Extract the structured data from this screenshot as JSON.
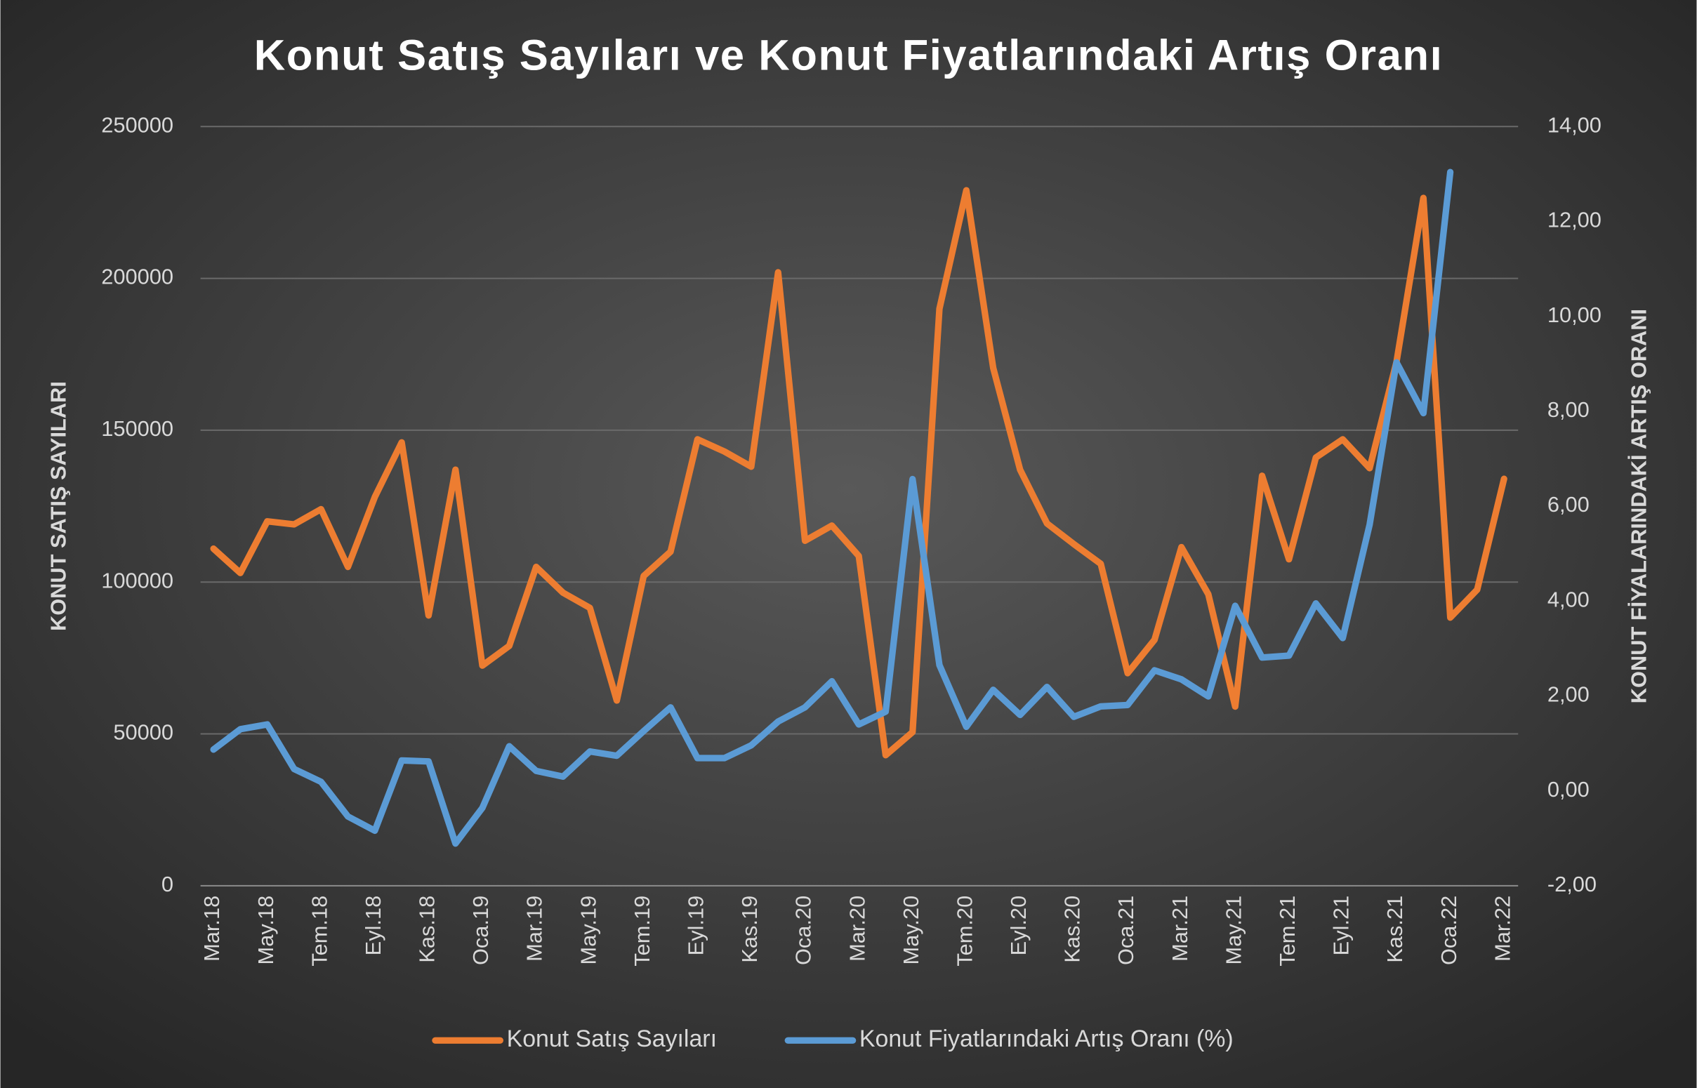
{
  "chart_data": {
    "type": "line",
    "title": "Konut Satış Sayıları ve Konut Fiyatlarındaki Artış Oranı",
    "ylabel": "KONUT SATIŞ SAYILARI",
    "y2label": "KONUT FİYALARINDAKİ ARTIŞ ORANI",
    "categories": [
      "Mar.18",
      null,
      "May.18",
      null,
      "Tem.18",
      null,
      "Eyl.18",
      null,
      "Kas.18",
      null,
      "Oca.19",
      null,
      "Mar.19",
      null,
      "May.19",
      null,
      "Tem.19",
      null,
      "Eyl.19",
      null,
      "Kas.19",
      null,
      "Oca.20",
      null,
      "Mar.20",
      null,
      "May.20",
      null,
      "Tem.20",
      null,
      "Eyl.20",
      null,
      "Kas.20",
      null,
      "Oca.21",
      null,
      "Mar.21",
      null,
      "May.21",
      null,
      "Tem.21",
      null,
      "Eyl.21",
      null,
      "Kas.21",
      null,
      "Oca.22",
      null,
      "Mar.22"
    ],
    "series": [
      {
        "name": "Konut Satış Sayıları",
        "color": "#ed7d31",
        "axis": "y",
        "values": [
          111000,
          103000,
          120000,
          119000,
          124000,
          105000,
          128000,
          146000,
          89000,
          137000,
          72500,
          79000,
          105000,
          96500,
          91500,
          61000,
          102000,
          110000,
          147000,
          143000,
          138000,
          202000,
          113600,
          118600,
          108600,
          43000,
          50600,
          190000,
          229000,
          170500,
          137000,
          119300,
          112500,
          106000,
          70000,
          81000,
          111500,
          96000,
          59000,
          135000,
          107500,
          141000,
          147000,
          137500,
          172500,
          226500,
          88300,
          97500,
          134000
        ]
      },
      {
        "name": "Konut Fiyatlarındaki Artış Oranı (%)",
        "color": "#5b9bd5",
        "axis": "y2",
        "values": [
          0.87,
          1.3,
          1.4,
          0.46,
          0.19,
          -0.54,
          -0.84,
          0.64,
          0.62,
          -1.11,
          -0.36,
          0.94,
          0.42,
          0.3,
          0.83,
          0.74,
          1.26,
          1.76,
          0.69,
          0.69,
          0.96,
          1.46,
          1.76,
          2.31,
          1.4,
          1.67,
          6.57,
          2.65,
          1.35,
          2.13,
          1.6,
          2.19,
          1.56,
          1.78,
          1.81,
          2.54,
          2.35,
          1.99,
          3.9,
          2.81,
          2.85,
          3.95,
          3.22,
          5.61,
          9.03,
          7.96,
          13.04,
          null,
          null
        ]
      }
    ],
    "ylim": [
      0,
      250000
    ],
    "yticks": [
      0,
      50000,
      100000,
      150000,
      200000,
      250000
    ],
    "y2lim": [
      -2,
      14
    ],
    "y2ticks": [
      {
        "value": -2,
        "label": "-2,00"
      },
      {
        "value": 0,
        "label": "0,00"
      },
      {
        "value": 2,
        "label": "2,00"
      },
      {
        "value": 4,
        "label": "4,00"
      },
      {
        "value": 6,
        "label": "6,00"
      },
      {
        "value": 8,
        "label": "8,00"
      },
      {
        "value": 10,
        "label": "10,00"
      },
      {
        "value": 12,
        "label": "12,00"
      },
      {
        "value": 14,
        "label": "14,00"
      }
    ],
    "grid": true,
    "legend": "bottom"
  }
}
